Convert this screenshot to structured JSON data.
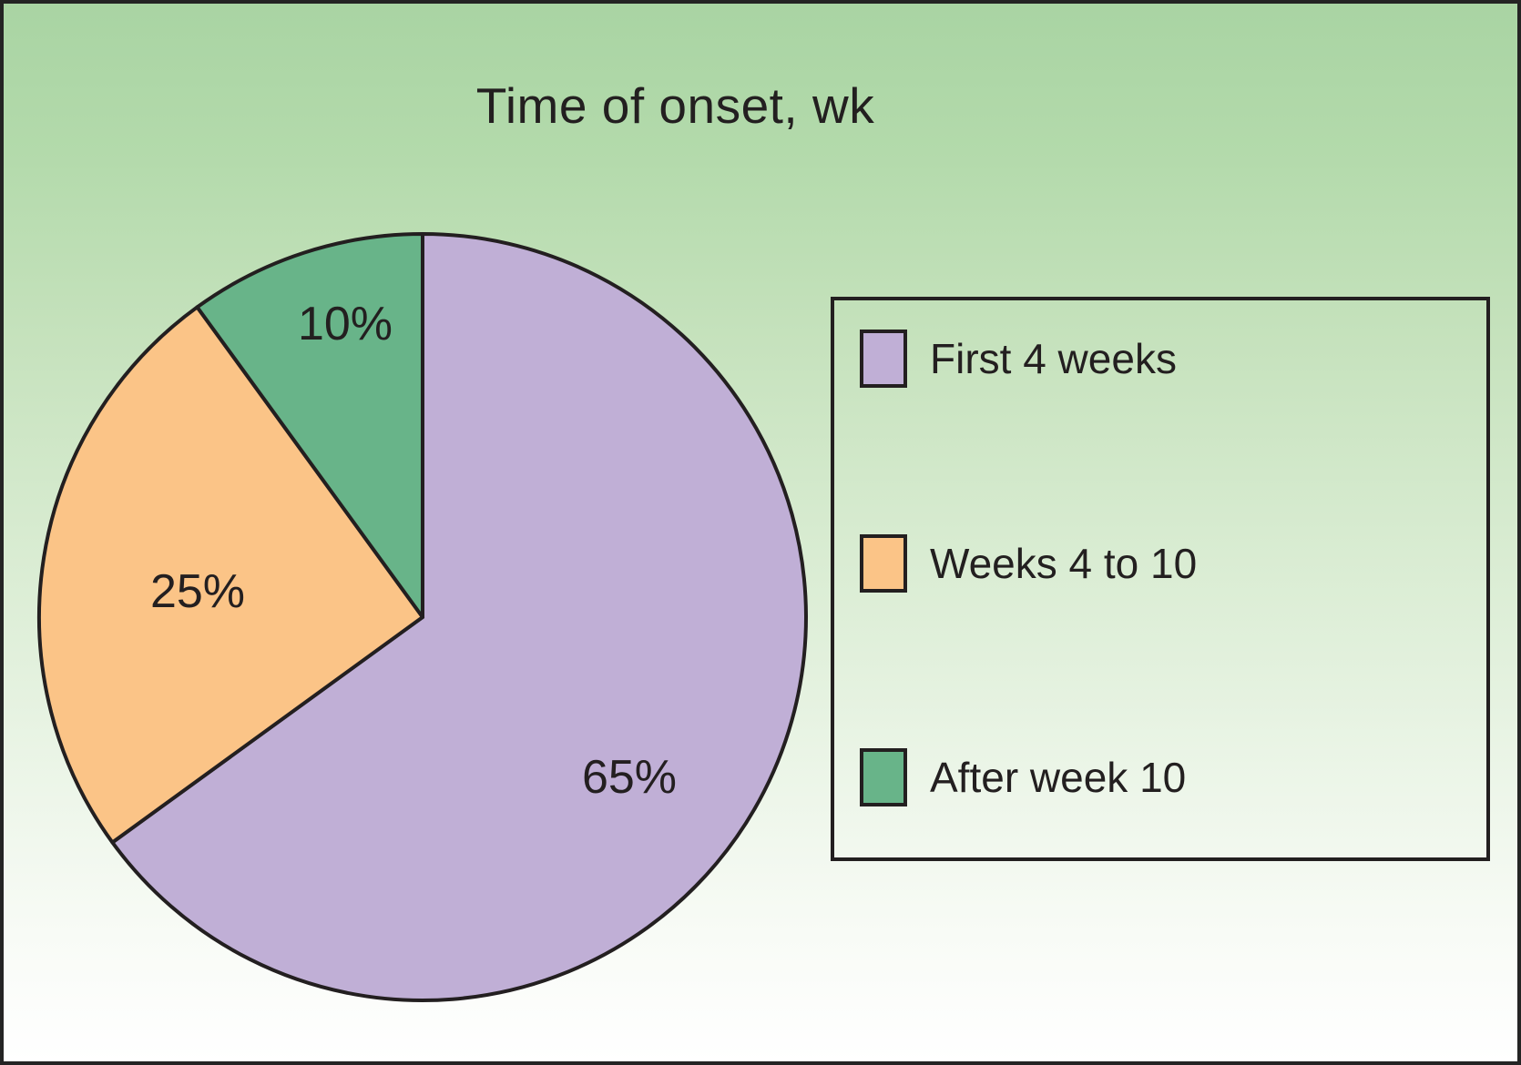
{
  "chart_data": {
    "type": "pie",
    "title": "Time of onset, wk",
    "slices": [
      {
        "label": "First 4 weeks",
        "value": 65,
        "value_label": "65%",
        "color": "#c0afd6"
      },
      {
        "label": "Weeks 4 to 10",
        "value": 25,
        "value_label": "25%",
        "color": "#fbc487"
      },
      {
        "label": "After week 10",
        "value": 10,
        "value_label": "10%",
        "color": "#68b489"
      }
    ],
    "start_angle_deg": 0,
    "direction": "clockwise",
    "legend_position": "right",
    "outline_color": "#231f20",
    "text_color": "#231f20",
    "background_gradient_top": "#a9d4a3",
    "background_gradient_bottom": "#ffffff"
  }
}
